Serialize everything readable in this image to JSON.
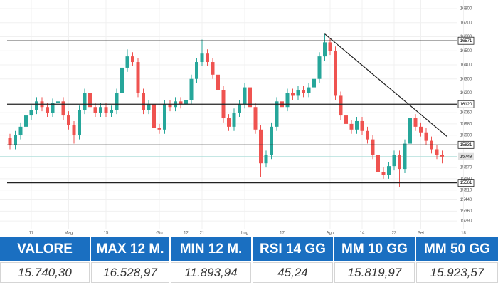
{
  "chart_data": {
    "type": "candlestick",
    "categories": [
      null,
      null,
      null,
      null,
      "17",
      null,
      null,
      null,
      null,
      null,
      null,
      "Mag",
      null,
      null,
      null,
      null,
      null,
      null,
      "15",
      null,
      null,
      null,
      null,
      null,
      null,
      null,
      null,
      null,
      "Giu",
      null,
      null,
      null,
      null,
      "12",
      null,
      null,
      "21",
      null,
      null,
      null,
      null,
      null,
      null,
      null,
      "Lug",
      null,
      null,
      null,
      null,
      null,
      null,
      "17",
      null,
      null,
      null,
      null,
      null,
      null,
      null,
      null,
      "Ago",
      null,
      null,
      null,
      null,
      null,
      "14",
      null,
      null,
      null,
      null,
      null,
      "23",
      null,
      null,
      null,
      null,
      "Set",
      null,
      null,
      null,
      null,
      null,
      null,
      null,
      "18"
    ],
    "open": [
      15880,
      15830,
      15900,
      15960,
      16040,
      16080,
      16140,
      16100,
      16060,
      16130,
      16140,
      16040,
      15970,
      15900,
      16080,
      16200,
      16100,
      16060,
      16100,
      16060,
      16080,
      16200,
      16380,
      16460,
      16420,
      16200,
      16080,
      16120,
      15950,
      15940,
      16120,
      16100,
      16140,
      16120,
      16150,
      16300,
      16420,
      16480,
      16420,
      16330,
      16220,
      16020,
      15960,
      16060,
      16120,
      16240,
      16100,
      15940,
      15700,
      15760,
      15960,
      16140,
      16100,
      16200,
      16180,
      16220,
      16200,
      16240,
      16300,
      16460,
      16560,
      16500,
      16180,
      16040,
      15980,
      15940,
      16000,
      15930,
      15870,
      15760,
      15640,
      15620,
      15680,
      15760,
      15660,
      15840,
      16020,
      15960,
      15920,
      15860,
      15800,
      15760,
      null,
      null,
      null,
      null
    ],
    "high": [
      15910,
      15930,
      15990,
      16070,
      16110,
      16170,
      16170,
      16130,
      16160,
      16170,
      16170,
      16070,
      16000,
      16110,
      16230,
      16230,
      16130,
      16130,
      16130,
      16110,
      16230,
      16410,
      16510,
      16490,
      16450,
      16230,
      16150,
      16150,
      15980,
      16150,
      16150,
      16170,
      16170,
      16180,
      16330,
      16450,
      16580,
      16510,
      16450,
      16360,
      16250,
      16050,
      16090,
      16150,
      16270,
      16270,
      16130,
      15970,
      15790,
      15990,
      16170,
      16170,
      16230,
      16230,
      16250,
      16250,
      16270,
      16330,
      16490,
      16620,
      16590,
      16530,
      16210,
      16070,
      16010,
      16030,
      16030,
      15960,
      15900,
      15790,
      15670,
      15710,
      15790,
      15790,
      15870,
      16050,
      16050,
      15990,
      15950,
      15890,
      15830,
      15790,
      null,
      null,
      null,
      null
    ],
    "low": [
      15800,
      15800,
      15870,
      15930,
      16010,
      16050,
      16070,
      16030,
      16030,
      16100,
      16010,
      15940,
      15840,
      15870,
      16050,
      16070,
      16030,
      16030,
      16030,
      16030,
      16050,
      16170,
      16350,
      16390,
      16170,
      16050,
      16050,
      15800,
      15910,
      15910,
      16070,
      16070,
      16090,
      16090,
      16120,
      16270,
      16390,
      16390,
      16300,
      16190,
      15990,
      15930,
      15930,
      16030,
      16090,
      16070,
      15910,
      15600,
      15670,
      15730,
      15930,
      16070,
      16070,
      16150,
      16150,
      16170,
      16170,
      16210,
      16270,
      16430,
      16470,
      16150,
      16010,
      15950,
      15910,
      15910,
      15900,
      15840,
      15730,
      15610,
      15590,
      15590,
      15650,
      15530,
      15630,
      15810,
      15930,
      15890,
      15830,
      15770,
      15730,
      15700,
      null,
      null,
      null,
      null
    ],
    "close": [
      15830,
      15900,
      15960,
      16040,
      16080,
      16140,
      16100,
      16060,
      16130,
      16140,
      16040,
      15970,
      15900,
      16080,
      16200,
      16100,
      16060,
      16100,
      16060,
      16080,
      16200,
      16380,
      16460,
      16420,
      16200,
      16080,
      16120,
      15950,
      15940,
      16120,
      16100,
      16140,
      16120,
      16150,
      16300,
      16420,
      16480,
      16420,
      16330,
      16220,
      16020,
      15960,
      16060,
      16120,
      16240,
      16100,
      15940,
      15700,
      15760,
      15960,
      16140,
      16100,
      16200,
      16180,
      16220,
      16200,
      16240,
      16300,
      16460,
      16560,
      16500,
      16180,
      16040,
      15980,
      15940,
      16000,
      15930,
      15870,
      15760,
      15640,
      15620,
      15680,
      15760,
      15660,
      15840,
      16020,
      15960,
      15920,
      15860,
      15800,
      15760,
      15748,
      null,
      null,
      null,
      null
    ],
    "up_color": "#26a69a",
    "down_color": "#ef5350",
    "ylim": [
      15230,
      16800
    ],
    "yticks": [
      16800,
      16700,
      16600,
      16500,
      16400,
      16300,
      16200,
      16060,
      15980,
      15900,
      15670,
      15590,
      15510,
      15440,
      15360,
      15290
    ],
    "levels": [
      16571,
      16120,
      15831,
      15561
    ],
    "last_price": 15748,
    "trendline": [
      16620,
      15890
    ],
    "grid": true
  },
  "table": {
    "header": [
      "VALORE",
      "MAX 12 M.",
      "MIN 12 M.",
      "RSI 14 GG",
      "MM 10 GG",
      "MM 50 GG"
    ],
    "rows": [
      [
        "15.740,30",
        "16.528,97",
        "11.893,94",
        "45,24",
        "15.819,97",
        "15.923,57"
      ]
    ]
  }
}
